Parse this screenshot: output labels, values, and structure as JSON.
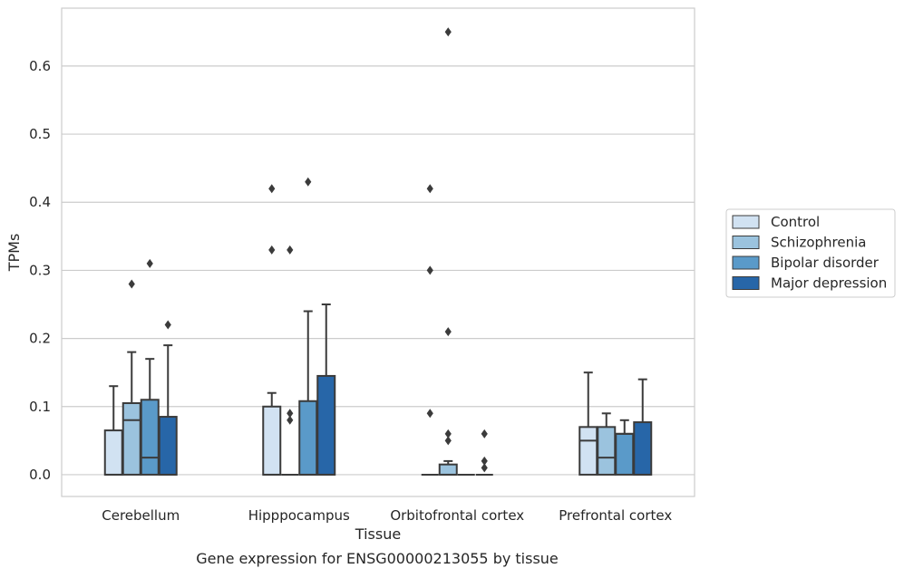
{
  "caption": "Gene expression for ENSG00000213055 by tissue",
  "chart_data": {
    "type": "boxplot",
    "xlabel": "Tissue",
    "ylabel": "TPMs",
    "ylim": [
      -0.032,
      0.685
    ],
    "yticks": [
      0.0,
      0.1,
      0.2,
      0.3,
      0.4,
      0.5,
      0.6
    ],
    "ytick_labels": [
      "0.0",
      "0.1",
      "0.2",
      "0.3",
      "0.4",
      "0.5",
      "0.6"
    ],
    "grid": true,
    "legend_position": "right",
    "categories": [
      "Cerebellum",
      "Hipppocampus",
      "Orbitofrontal cortex",
      "Prefrontal cortex"
    ],
    "series": [
      {
        "name": "Control",
        "color": "#d1e2f2",
        "boxes": [
          {
            "q1": 0.0,
            "median": 0.0,
            "q3": 0.065,
            "whisker_low": 0.0,
            "whisker_high": 0.13,
            "outliers": []
          },
          {
            "q1": 0.0,
            "median": 0.0,
            "q3": 0.1,
            "whisker_low": 0.0,
            "whisker_high": 0.12,
            "outliers": [
              0.33,
              0.42
            ]
          },
          {
            "q1": 0.0,
            "median": 0.0,
            "q3": 0.0,
            "whisker_low": 0.0,
            "whisker_high": 0.0,
            "outliers": [
              0.09,
              0.3,
              0.42
            ]
          },
          {
            "q1": 0.0,
            "median": 0.05,
            "q3": 0.07,
            "whisker_low": 0.0,
            "whisker_high": 0.15,
            "outliers": []
          }
        ]
      },
      {
        "name": "Schizophrenia",
        "color": "#9bc3de",
        "boxes": [
          {
            "q1": 0.0,
            "median": 0.08,
            "q3": 0.105,
            "whisker_low": 0.0,
            "whisker_high": 0.18,
            "outliers": [
              0.28
            ]
          },
          {
            "q1": 0.0,
            "median": 0.0,
            "q3": 0.0,
            "whisker_low": 0.0,
            "whisker_high": 0.0,
            "outliers": [
              0.08,
              0.09,
              0.33
            ]
          },
          {
            "q1": 0.0,
            "median": 0.0,
            "q3": 0.015,
            "whisker_low": 0.0,
            "whisker_high": 0.02,
            "outliers": [
              0.05,
              0.06,
              0.21,
              0.65
            ]
          },
          {
            "q1": 0.0,
            "median": 0.025,
            "q3": 0.07,
            "whisker_low": 0.0,
            "whisker_high": 0.09,
            "outliers": []
          }
        ]
      },
      {
        "name": "Bipolar disorder",
        "color": "#5a9ac9",
        "boxes": [
          {
            "q1": 0.0,
            "median": 0.025,
            "q3": 0.11,
            "whisker_low": 0.0,
            "whisker_high": 0.17,
            "outliers": [
              0.31
            ]
          },
          {
            "q1": 0.0,
            "median": 0.0,
            "q3": 0.108,
            "whisker_low": 0.0,
            "whisker_high": 0.24,
            "outliers": [
              0.43
            ]
          },
          {
            "q1": 0.0,
            "median": 0.0,
            "q3": 0.0,
            "whisker_low": 0.0,
            "whisker_high": 0.0,
            "outliers": []
          },
          {
            "q1": 0.0,
            "median": 0.06,
            "q3": 0.06,
            "whisker_low": 0.0,
            "whisker_high": 0.08,
            "outliers": []
          }
        ]
      },
      {
        "name": "Major depression",
        "color": "#2766a8",
        "boxes": [
          {
            "q1": 0.0,
            "median": 0.0,
            "q3": 0.085,
            "whisker_low": 0.0,
            "whisker_high": 0.19,
            "outliers": [
              0.22
            ]
          },
          {
            "q1": 0.0,
            "median": 0.0,
            "q3": 0.145,
            "whisker_low": 0.0,
            "whisker_high": 0.25,
            "outliers": []
          },
          {
            "q1": 0.0,
            "median": 0.0,
            "q3": 0.0,
            "whisker_low": 0.0,
            "whisker_high": 0.0,
            "outliers": [
              0.01,
              0.02,
              0.06
            ]
          },
          {
            "q1": 0.0,
            "median": 0.0,
            "q3": 0.077,
            "whisker_low": 0.0,
            "whisker_high": 0.14,
            "outliers": []
          }
        ]
      }
    ]
  }
}
